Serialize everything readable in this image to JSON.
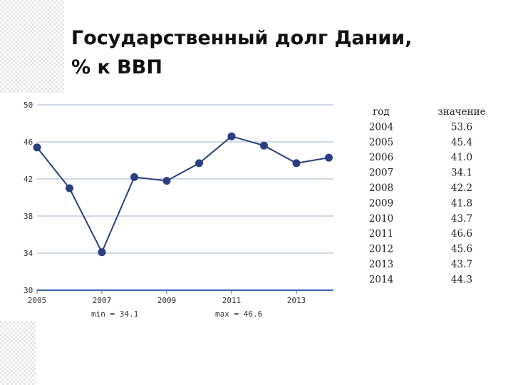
{
  "title_lines": [
    "Государственный долг Дании,",
    "% к ВВП"
  ],
  "chart_data": {
    "type": "line",
    "x": [
      2005,
      2006,
      2007,
      2008,
      2009,
      2010,
      2011,
      2012,
      2013,
      2014
    ],
    "series": [
      {
        "color": "#2b3f80",
        "values": [
          45.4,
          41.0,
          34.1,
          42.2,
          41.8,
          43.7,
          46.6,
          45.6,
          43.7,
          44.3
        ]
      }
    ],
    "xlim": [
      2005,
      2014
    ],
    "xticks": [
      2005,
      2007,
      2009,
      2011,
      2013
    ],
    "ylim": [
      30,
      50
    ],
    "yticks": [
      30,
      34,
      38,
      42,
      46,
      50
    ],
    "grid": true,
    "annotations": [
      "min = 34.1",
      "max = 46.6"
    ]
  },
  "table": {
    "header": [
      "год",
      "значение"
    ],
    "rows": [
      [
        "2004",
        "53.6"
      ],
      [
        "2005",
        "45.4"
      ],
      [
        "2006",
        "41.0"
      ],
      [
        "2007",
        "34.1"
      ],
      [
        "2008",
        "42.2"
      ],
      [
        "2009",
        "41.8"
      ],
      [
        "2010",
        "43.7"
      ],
      [
        "2011",
        "46.6"
      ],
      [
        "2012",
        "45.6"
      ],
      [
        "2013",
        "43.7"
      ],
      [
        "2014",
        "44.3"
      ]
    ]
  }
}
